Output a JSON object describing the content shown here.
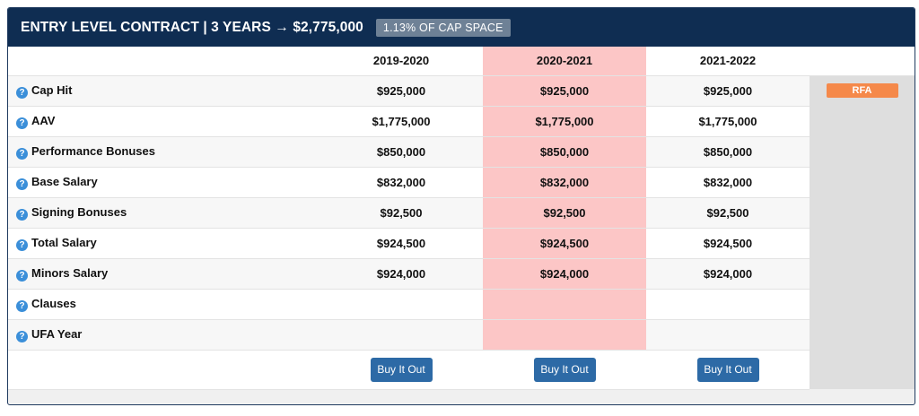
{
  "header": {
    "title": "ENTRY LEVEL CONTRACT | 3 YEARS → $2,775,000",
    "cap_badge": "1.13% OF CAP SPACE"
  },
  "table": {
    "seasons": [
      "2019-2020",
      "2020-2021",
      "2021-2022"
    ],
    "current_season_index": 1,
    "rows": [
      {
        "label": "Cap Hit",
        "values": [
          "$925,000",
          "$925,000",
          "$925,000"
        ]
      },
      {
        "label": "AAV",
        "values": [
          "$1,775,000",
          "$1,775,000",
          "$1,775,000"
        ]
      },
      {
        "label": "Performance Bonuses",
        "values": [
          "$850,000",
          "$850,000",
          "$850,000"
        ]
      },
      {
        "label": "Base Salary",
        "values": [
          "$832,000",
          "$832,000",
          "$832,000"
        ]
      },
      {
        "label": "Signing Bonuses",
        "values": [
          "$92,500",
          "$92,500",
          "$92,500"
        ]
      },
      {
        "label": "Total Salary",
        "values": [
          "$924,500",
          "$924,500",
          "$924,500"
        ]
      },
      {
        "label": "Minors Salary",
        "values": [
          "$924,000",
          "$924,000",
          "$924,000"
        ]
      },
      {
        "label": "Clauses",
        "values": [
          "",
          "",
          ""
        ]
      },
      {
        "label": "UFA Year",
        "values": [
          "",
          "",
          ""
        ]
      }
    ],
    "status_badge": "RFA",
    "buy_out_label": "Buy It Out",
    "help_icon_glyph": "?"
  },
  "colors": {
    "header_bg": "#0f2d52",
    "current_season_bg": "#fcc6c6",
    "status_badge_bg": "#f5894a",
    "button_bg": "#2d6aa6",
    "help_icon": "#3b8fd9"
  }
}
